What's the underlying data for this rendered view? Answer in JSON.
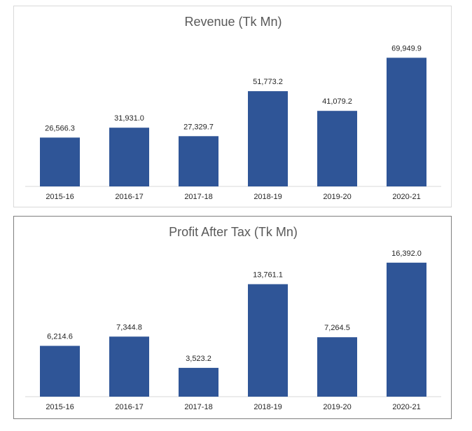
{
  "colors": {
    "bar": "#2f5597",
    "axis": "#d9d9d9",
    "text": "#262626",
    "title": "#595959"
  },
  "chart_data": [
    {
      "type": "bar",
      "title": "Revenue (Tk Mn)",
      "categories": [
        "2015-16",
        "2016-17",
        "2017-18",
        "2018-19",
        "2019-20",
        "2020-21"
      ],
      "values": [
        26566.3,
        31931.0,
        27329.7,
        51773.2,
        41079.2,
        69949.9
      ],
      "value_labels": [
        "26,566.3",
        "31,931.0",
        "27,329.7",
        "51,773.2",
        "41,079.2",
        "69,949.9"
      ],
      "ylim": [
        0,
        80000
      ],
      "grid": false,
      "legend": "none"
    },
    {
      "type": "bar",
      "title": "Profit After Tax (Tk Mn)",
      "categories": [
        "2015-16",
        "2016-17",
        "2017-18",
        "2018-19",
        "2019-20",
        "2020-21"
      ],
      "values": [
        6214.6,
        7344.8,
        3523.2,
        13761.1,
        7264.5,
        16392.0
      ],
      "value_labels": [
        "6,214.6",
        "7,344.8",
        "3,523.2",
        "13,761.1",
        "7,264.5",
        "16,392.0"
      ],
      "ylim": [
        0,
        18000
      ],
      "grid": false,
      "legend": "none"
    }
  ]
}
